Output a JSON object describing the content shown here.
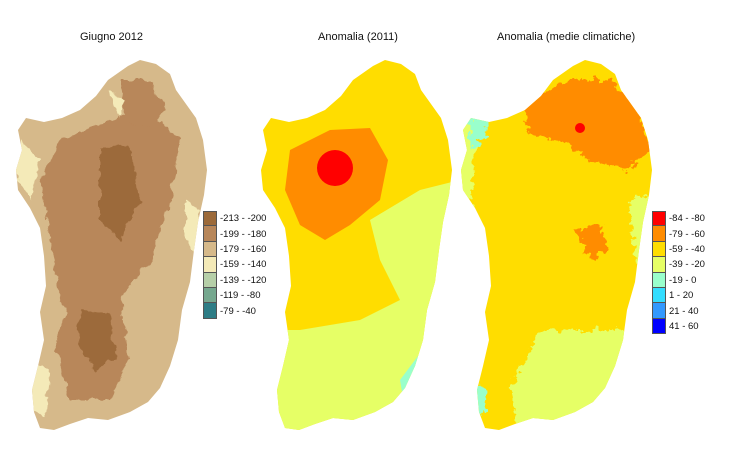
{
  "maps": [
    {
      "title": "Giugno 2012"
    },
    {
      "title": "Anomalia (2011)"
    },
    {
      "title": "Anomalia (medie climatiche)"
    }
  ],
  "legend_left": {
    "items": [
      {
        "label": "-213 - -200",
        "color": "#9c6a3a"
      },
      {
        "label": "-199 - -180",
        "color": "#b8875a"
      },
      {
        "label": "-179 - -160",
        "color": "#d6b98a"
      },
      {
        "label": "-159 - -140",
        "color": "#f4eab8"
      },
      {
        "label": "-139 - -120",
        "color": "#b6cfa8"
      },
      {
        "label": "-119 - -80",
        "color": "#76a88f"
      },
      {
        "label": "-79 - -40",
        "color": "#2e7d86"
      }
    ]
  },
  "legend_right": {
    "items": [
      {
        "label": "-84 - -80",
        "color": "#ff0000"
      },
      {
        "label": "-79 - -60",
        "color": "#ff8c00"
      },
      {
        "label": "-59 - -40",
        "color": "#ffdd00"
      },
      {
        "label": "-39 - -20",
        "color": "#e6ff66"
      },
      {
        "label": "-19 - 0",
        "color": "#99ffcc"
      },
      {
        "label": "1 - 20",
        "color": "#33ddff"
      },
      {
        "label": "21 - 40",
        "color": "#3399ff"
      },
      {
        "label": "41 - 60",
        "color": "#0000ff"
      }
    ]
  }
}
